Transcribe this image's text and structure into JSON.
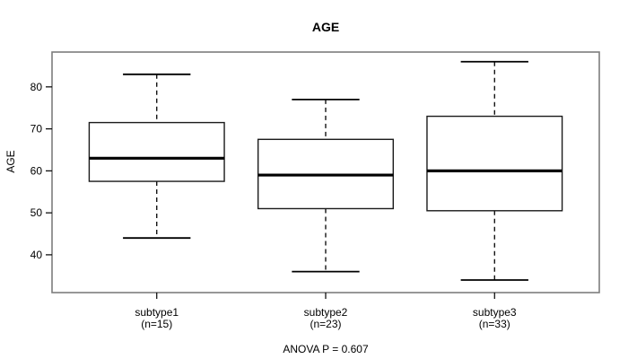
{
  "figure": {
    "title": "AGE",
    "y_axis_label": "AGE",
    "annotation": "ANOVA P = 0.607"
  },
  "chart_data": {
    "type": "boxplot",
    "title": "AGE",
    "xlabel": "",
    "ylabel": "AGE",
    "ylim": [
      31,
      88.3
    ],
    "yticks": [
      40,
      50,
      60,
      70,
      80
    ],
    "grid": false,
    "legend": "none",
    "annotation": "ANOVA P = 0.607",
    "categories": [
      "subtype1",
      "subtype2",
      "subtype3"
    ],
    "category_sublabels": [
      "(n=15)",
      "(n=23)",
      "(n=33)"
    ],
    "series": [
      {
        "name": "subtype1",
        "n": 15,
        "whisker_low": 44,
        "q1": 57.5,
        "median": 63,
        "q3": 71.5,
        "whisker_high": 83
      },
      {
        "name": "subtype2",
        "n": 23,
        "whisker_low": 36,
        "q1": 51,
        "median": 59,
        "q3": 67.5,
        "whisker_high": 77
      },
      {
        "name": "subtype3",
        "n": 33,
        "whisker_low": 34,
        "q1": 50.5,
        "median": 60,
        "q3": 73,
        "whisker_high": 86
      }
    ],
    "colors": {
      "background": "#ffffff",
      "frame": "#7d7d7d",
      "box_stroke": "#1a1a1a",
      "box_fill": "#ffffff",
      "median": "#000000",
      "whisker": "#000000",
      "text": "#000000"
    }
  }
}
